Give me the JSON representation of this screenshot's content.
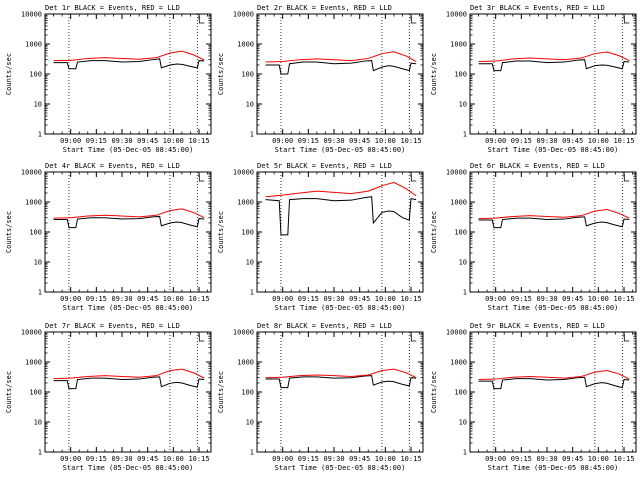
{
  "colors": {
    "events": "#000000",
    "lld": "#ff0000",
    "frame": "#000000",
    "background": "#ffffff"
  },
  "chart_data": [
    {
      "type": "line",
      "title": "Det 1r BLACK = Events, RED = LLD",
      "xlabel": "Start Time (05-Dec-05 08:45:00)",
      "ylabel": "Counts/sec",
      "x_tick_labels": [
        "09:00",
        "09:15",
        "09:30",
        "09:45",
        "10:00",
        "10:15"
      ],
      "y_tick_labels": [
        "1",
        "10",
        "100",
        "1000",
        "10000"
      ],
      "yscale": "log",
      "ylim": [
        1,
        10000
      ],
      "series": [
        {
          "name": "Events",
          "x": [
            "08:50",
            "08:58",
            "08:59",
            "09:03",
            "09:04",
            "09:12",
            "09:20",
            "09:30",
            "09:40",
            "09:48",
            "09:52",
            "09:53",
            "09:58",
            "10:02",
            "10:05",
            "10:10",
            "10:14",
            "10:15",
            "10:18"
          ],
          "y": [
            240,
            240,
            150,
            150,
            250,
            280,
            280,
            250,
            260,
            300,
            320,
            160,
            200,
            215,
            210,
            180,
            160,
            280,
            270
          ]
        },
        {
          "name": "LLD",
          "x": [
            "08:50",
            "09:00",
            "09:10",
            "09:20",
            "09:30",
            "09:40",
            "09:50",
            "09:58",
            "10:05",
            "10:12",
            "10:18"
          ],
          "y": [
            280,
            285,
            330,
            350,
            330,
            310,
            350,
            500,
            580,
            430,
            290
          ]
        }
      ],
      "markers": [
        "08:59",
        "09:58",
        "10:14"
      ]
    },
    {
      "type": "line",
      "title": "Det 2r BLACK = Events, RED = LLD",
      "xlabel": "Start Time (05-Dec-05 08:45:00)",
      "ylabel": "Counts/sec",
      "x_tick_labels": [
        "09:00",
        "09:15",
        "09:30",
        "09:45",
        "10:00",
        "10:15"
      ],
      "y_tick_labels": [
        "1",
        "10",
        "100",
        "1000",
        "10000"
      ],
      "yscale": "log",
      "ylim": [
        1,
        10000
      ],
      "series": [
        {
          "name": "Events",
          "x": [
            "08:50",
            "08:58",
            "08:59",
            "09:03",
            "09:04",
            "09:12",
            "09:20",
            "09:30",
            "09:40",
            "09:48",
            "09:52",
            "09:53",
            "09:58",
            "10:02",
            "10:05",
            "10:10",
            "10:14",
            "10:15",
            "10:18"
          ],
          "y": [
            200,
            200,
            100,
            100,
            220,
            250,
            250,
            220,
            230,
            270,
            280,
            130,
            170,
            190,
            180,
            150,
            130,
            230,
            220
          ]
        },
        {
          "name": "LLD",
          "x": [
            "08:50",
            "09:00",
            "09:10",
            "09:20",
            "09:30",
            "09:40",
            "09:50",
            "09:58",
            "10:05",
            "10:12",
            "10:18"
          ],
          "y": [
            250,
            260,
            300,
            320,
            300,
            280,
            330,
            480,
            550,
            400,
            260
          ]
        }
      ],
      "markers": [
        "08:59",
        "09:58",
        "10:14"
      ]
    },
    {
      "type": "line",
      "title": "Det 3r BLACK = Events, RED = LLD",
      "xlabel": "Start Time (05-Dec-05 08:45:00)",
      "ylabel": "Counts/sec",
      "x_tick_labels": [
        "09:00",
        "09:15",
        "09:30",
        "09:45",
        "10:00",
        "10:15"
      ],
      "y_tick_labels": [
        "1",
        "10",
        "100",
        "1000",
        "10000"
      ],
      "yscale": "log",
      "ylim": [
        1,
        10000
      ],
      "series": [
        {
          "name": "Events",
          "x": [
            "08:50",
            "08:58",
            "08:59",
            "09:03",
            "09:04",
            "09:12",
            "09:20",
            "09:30",
            "09:40",
            "09:48",
            "09:52",
            "09:53",
            "09:58",
            "10:02",
            "10:05",
            "10:10",
            "10:14",
            "10:15",
            "10:18"
          ],
          "y": [
            220,
            220,
            130,
            130,
            240,
            270,
            270,
            240,
            250,
            290,
            300,
            150,
            190,
            200,
            195,
            170,
            150,
            260,
            250
          ]
        },
        {
          "name": "LLD",
          "x": [
            "08:50",
            "09:00",
            "09:10",
            "09:20",
            "09:30",
            "09:40",
            "09:50",
            "09:58",
            "10:05",
            "10:12",
            "10:18"
          ],
          "y": [
            260,
            270,
            320,
            340,
            320,
            300,
            340,
            480,
            540,
            410,
            280
          ]
        }
      ],
      "markers": [
        "08:59",
        "09:58",
        "10:14"
      ]
    },
    {
      "type": "line",
      "title": "Det 4r BLACK = Events, RED = LLD",
      "xlabel": "Start Time (05-Dec-05 08:45:00)",
      "ylabel": "Counts/sec",
      "x_tick_labels": [
        "09:00",
        "09:15",
        "09:30",
        "09:45",
        "10:00",
        "10:15"
      ],
      "y_tick_labels": [
        "1",
        "10",
        "100",
        "1000",
        "10000"
      ],
      "yscale": "log",
      "ylim": [
        1,
        10000
      ],
      "series": [
        {
          "name": "Events",
          "x": [
            "08:50",
            "08:58",
            "08:59",
            "09:03",
            "09:04",
            "09:12",
            "09:20",
            "09:30",
            "09:40",
            "09:48",
            "09:52",
            "09:53",
            "09:58",
            "10:02",
            "10:05",
            "10:10",
            "10:14",
            "10:15",
            "10:18"
          ],
          "y": [
            260,
            260,
            140,
            140,
            270,
            300,
            300,
            270,
            280,
            320,
            330,
            160,
            200,
            215,
            205,
            170,
            150,
            280,
            270
          ]
        },
        {
          "name": "LLD",
          "x": [
            "08:50",
            "09:00",
            "09:10",
            "09:20",
            "09:30",
            "09:40",
            "09:50",
            "09:58",
            "10:05",
            "10:12",
            "10:18"
          ],
          "y": [
            290,
            300,
            340,
            360,
            340,
            320,
            360,
            520,
            590,
            440,
            300
          ]
        }
      ],
      "markers": [
        "08:59",
        "09:58",
        "10:14"
      ]
    },
    {
      "type": "line",
      "title": "Det 5r BLACK = Events, RED = LLD",
      "xlabel": "Start Time (05-Dec-05 08:45:00)",
      "ylabel": "Counts/sec",
      "x_tick_labels": [
        "09:00",
        "09:15",
        "09:30",
        "09:45",
        "10:00",
        "10:15"
      ],
      "y_tick_labels": [
        "1",
        "10",
        "100",
        "1000",
        "10000"
      ],
      "yscale": "log",
      "ylim": [
        1,
        10000
      ],
      "series": [
        {
          "name": "Events",
          "x": [
            "08:50",
            "08:58",
            "08:59",
            "09:03",
            "09:04",
            "09:12",
            "09:20",
            "09:30",
            "09:40",
            "09:48",
            "09:52",
            "09:53",
            "09:58",
            "10:02",
            "10:05",
            "10:10",
            "10:14",
            "10:15",
            "10:18"
          ],
          "y": [
            1200,
            1100,
            80,
            80,
            1200,
            1300,
            1300,
            1100,
            1150,
            1400,
            1500,
            200,
            450,
            500,
            480,
            300,
            250,
            1300,
            1200
          ]
        },
        {
          "name": "LLD",
          "x": [
            "08:50",
            "09:00",
            "09:10",
            "09:20",
            "09:30",
            "09:40",
            "09:50",
            "09:58",
            "10:05",
            "10:12",
            "10:18"
          ],
          "y": [
            1500,
            1700,
            2000,
            2300,
            2100,
            1900,
            2300,
            3500,
            4500,
            2800,
            1600
          ]
        }
      ],
      "markers": [
        "08:59",
        "09:58",
        "10:14"
      ]
    },
    {
      "type": "line",
      "title": "Det 6r BLACK = Events, RED = LLD",
      "xlabel": "Start Time (05-Dec-05 08:45:00)",
      "ylabel": "Counts/sec",
      "x_tick_labels": [
        "09:00",
        "09:15",
        "09:30",
        "09:45",
        "10:00",
        "10:15"
      ],
      "y_tick_labels": [
        "1",
        "10",
        "100",
        "1000",
        "10000"
      ],
      "yscale": "log",
      "ylim": [
        1,
        10000
      ],
      "series": [
        {
          "name": "Events",
          "x": [
            "08:50",
            "08:58",
            "08:59",
            "09:03",
            "09:04",
            "09:12",
            "09:20",
            "09:30",
            "09:40",
            "09:48",
            "09:52",
            "09:53",
            "09:58",
            "10:02",
            "10:05",
            "10:10",
            "10:14",
            "10:15",
            "10:18"
          ],
          "y": [
            250,
            250,
            140,
            140,
            260,
            290,
            290,
            260,
            270,
            310,
            320,
            160,
            200,
            215,
            205,
            170,
            150,
            270,
            260
          ]
        },
        {
          "name": "LLD",
          "x": [
            "08:50",
            "09:00",
            "09:10",
            "09:20",
            "09:30",
            "09:40",
            "09:50",
            "09:58",
            "10:05",
            "10:12",
            "10:18"
          ],
          "y": [
            280,
            290,
            330,
            350,
            330,
            310,
            350,
            500,
            560,
            420,
            290
          ]
        }
      ],
      "markers": [
        "08:59",
        "09:58",
        "10:14"
      ]
    },
    {
      "type": "line",
      "title": "Det 7r BLACK = Events, RED = LLD",
      "xlabel": "Start Time (05-Dec-05 08:45:00)",
      "ylabel": "Counts/sec",
      "x_tick_labels": [
        "09:00",
        "09:15",
        "09:30",
        "09:45",
        "10:00",
        "10:15"
      ],
      "y_tick_labels": [
        "1",
        "10",
        "100",
        "1000",
        "10000"
      ],
      "yscale": "log",
      "ylim": [
        1,
        10000
      ],
      "series": [
        {
          "name": "Events",
          "x": [
            "08:50",
            "08:58",
            "08:59",
            "09:03",
            "09:04",
            "09:12",
            "09:20",
            "09:30",
            "09:40",
            "09:48",
            "09:52",
            "09:53",
            "09:58",
            "10:02",
            "10:05",
            "10:10",
            "10:14",
            "10:15",
            "10:18"
          ],
          "y": [
            240,
            240,
            130,
            130,
            260,
            290,
            290,
            260,
            270,
            310,
            320,
            150,
            195,
            210,
            200,
            165,
            145,
            270,
            260
          ]
        },
        {
          "name": "LLD",
          "x": [
            "08:50",
            "09:00",
            "09:10",
            "09:20",
            "09:30",
            "09:40",
            "09:50",
            "09:58",
            "10:05",
            "10:12",
            "10:18"
          ],
          "y": [
            280,
            290,
            330,
            350,
            330,
            310,
            350,
            520,
            580,
            430,
            290
          ]
        }
      ],
      "markers": [
        "08:59",
        "09:58",
        "10:14"
      ]
    },
    {
      "type": "line",
      "title": "Det 8r BLACK = Events, RED = LLD",
      "xlabel": "Start Time (05-Dec-05 08:45:00)",
      "ylabel": "Counts/sec",
      "x_tick_labels": [
        "09:00",
        "09:15",
        "09:30",
        "09:45",
        "10:00",
        "10:15"
      ],
      "y_tick_labels": [
        "1",
        "10",
        "100",
        "1000",
        "10000"
      ],
      "yscale": "log",
      "ylim": [
        1,
        10000
      ],
      "series": [
        {
          "name": "Events",
          "x": [
            "08:50",
            "08:58",
            "08:59",
            "09:03",
            "09:04",
            "09:12",
            "09:20",
            "09:30",
            "09:40",
            "09:48",
            "09:52",
            "09:53",
            "09:58",
            "10:02",
            "10:05",
            "10:10",
            "10:14",
            "10:15",
            "10:18"
          ],
          "y": [
            270,
            270,
            140,
            140,
            290,
            320,
            320,
            290,
            300,
            340,
            350,
            170,
            215,
            230,
            220,
            180,
            160,
            300,
            290
          ]
        },
        {
          "name": "LLD",
          "x": [
            "08:50",
            "09:00",
            "09:10",
            "09:20",
            "09:30",
            "09:40",
            "09:50",
            "09:58",
            "10:05",
            "10:12",
            "10:18"
          ],
          "y": [
            300,
            310,
            350,
            370,
            350,
            330,
            370,
            520,
            580,
            440,
            300
          ]
        }
      ],
      "markers": [
        "08:59",
        "09:58",
        "10:14"
      ]
    },
    {
      "type": "line",
      "title": "Det 9r BLACK = Events, RED = LLD",
      "xlabel": "Start Time (05-Dec-05 08:45:00)",
      "ylabel": "Counts/sec",
      "x_tick_labels": [
        "09:00",
        "09:15",
        "09:30",
        "09:45",
        "10:00",
        "10:15"
      ],
      "y_tick_labels": [
        "1",
        "10",
        "100",
        "1000",
        "10000"
      ],
      "yscale": "log",
      "ylim": [
        1,
        10000
      ],
      "series": [
        {
          "name": "Events",
          "x": [
            "08:50",
            "08:58",
            "08:59",
            "09:03",
            "09:04",
            "09:12",
            "09:20",
            "09:30",
            "09:40",
            "09:48",
            "09:52",
            "09:53",
            "09:58",
            "10:02",
            "10:05",
            "10:10",
            "10:14",
            "10:15",
            "10:18"
          ],
          "y": [
            230,
            230,
            130,
            130,
            250,
            280,
            280,
            250,
            260,
            300,
            310,
            150,
            190,
            205,
            195,
            160,
            140,
            260,
            250
          ]
        },
        {
          "name": "LLD",
          "x": [
            "08:50",
            "09:00",
            "09:10",
            "09:20",
            "09:30",
            "09:40",
            "09:50",
            "09:58",
            "10:05",
            "10:12",
            "10:18"
          ],
          "y": [
            260,
            270,
            310,
            330,
            310,
            290,
            330,
            460,
            520,
            400,
            270
          ]
        }
      ],
      "markers": [
        "08:59",
        "09:58",
        "10:14"
      ]
    }
  ]
}
